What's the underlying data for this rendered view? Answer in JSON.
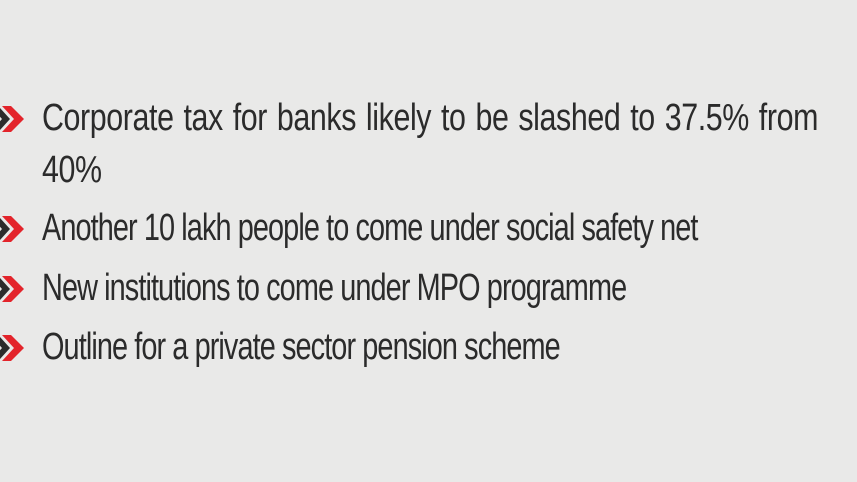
{
  "accent_color": "#e3242b",
  "bullet_icon": "double-chevron-right-icon",
  "items": [
    {
      "text": "Corporate tax for banks likely to be slashed to 37.5% from 40%"
    },
    {
      "text": "Another 10 lakh people to come under social safety net"
    },
    {
      "text": "New institutions to come under MPO programme"
    },
    {
      "text": "Outline for a private sector pension scheme"
    }
  ]
}
